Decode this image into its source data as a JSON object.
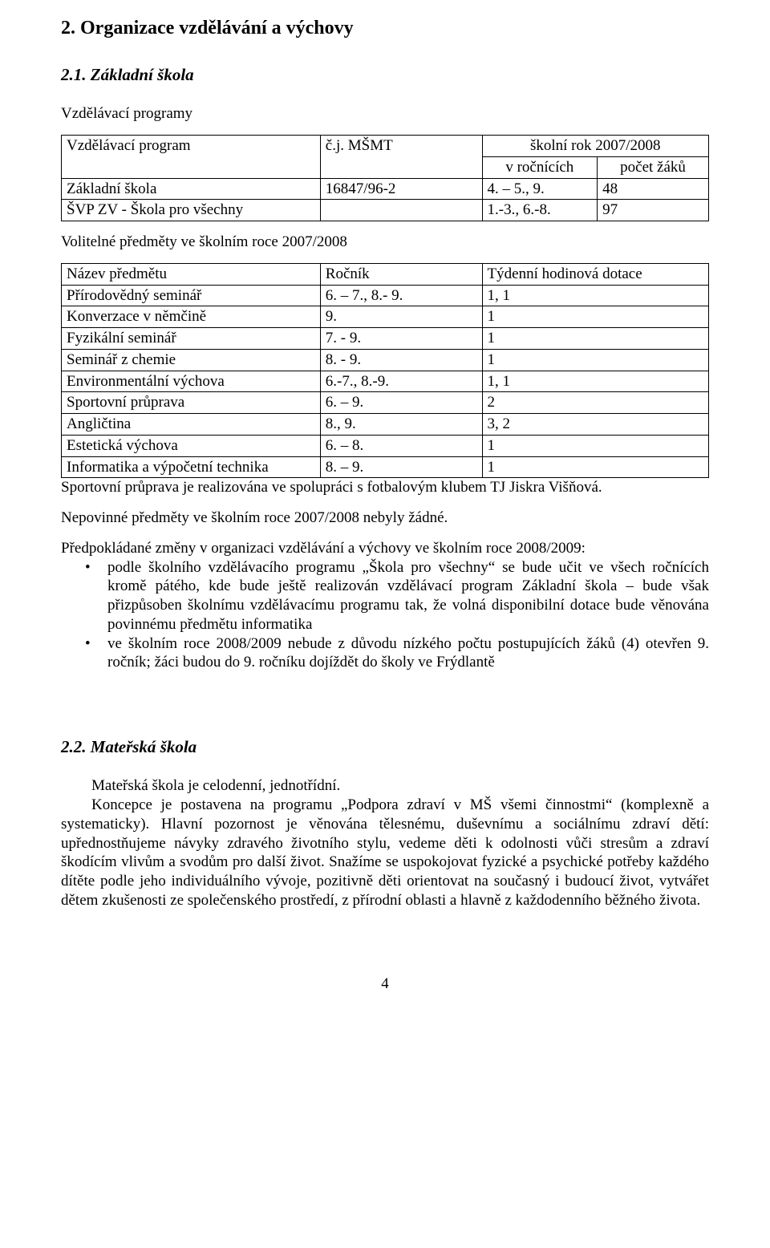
{
  "colors": {
    "text": "#000000",
    "background": "#ffffff",
    "table_border": "#000000"
  },
  "typography": {
    "body_family": "Times New Roman",
    "body_size_pt": 14,
    "h2_size_pt": 18,
    "h3_size_pt": 16
  },
  "section_title": "2. Organizace vzdělávání a výchovy",
  "sub1_title": "2.1. Základní škola",
  "vzdel_prog_label": "Vzdělávací programy",
  "table1": {
    "col_widths": [
      "40%",
      "25%",
      "35%"
    ],
    "header_row1": {
      "a": "Vzdělávací program",
      "b": "č.j. MŠMT",
      "c_span": "školní rok 2007/2008"
    },
    "header_row2": {
      "c1": "v ročnících",
      "c2": "počet žáků"
    },
    "rows": [
      {
        "a": "Základní škola",
        "b": "16847/96-2",
        "c1": "4. – 5., 9.",
        "c2": "48"
      },
      {
        "a": "ŠVP ZV - Škola pro všechny",
        "b": "",
        "c1": "1.-3., 6.-8.",
        "c2": "97"
      }
    ]
  },
  "volitelne_label": "Volitelné předměty ve školním roce 2007/2008",
  "table2": {
    "col_widths": [
      "40%",
      "25%",
      "35%"
    ],
    "headers": {
      "a": "Název předmětu",
      "b": "Ročník",
      "c": "Týdenní hodinová dotace"
    },
    "rows": [
      {
        "a": "Přírodovědný seminář",
        "b": "6. – 7., 8.- 9.",
        "c": "1, 1"
      },
      {
        "a": "Konverzace v němčině",
        "b": "9.",
        "c": "1"
      },
      {
        "a": "Fyzikální seminář",
        "b": "7. - 9.",
        "c": "1"
      },
      {
        "a": "Seminář z chemie",
        "b": "8. - 9.",
        "c": "1"
      },
      {
        "a": "Environmentální výchova",
        "b": "6.-7., 8.-9.",
        "c": "1, 1"
      },
      {
        "a": "Sportovní průprava",
        "b": "6. – 9.",
        "c": "2"
      },
      {
        "a": "Angličtina",
        "b": "8., 9.",
        "c": "3, 2"
      },
      {
        "a": "Estetická výchova",
        "b": "6. – 8.",
        "c": "1"
      },
      {
        "a": "Informatika a výpočetní technika",
        "b": "8. – 9.",
        "c": "1"
      }
    ]
  },
  "sport_note": "Sportovní průprava je realizována ve spolupráci s fotbalovým klubem TJ Jiskra Višňová.",
  "nepovinne_note": "Nepovinné předměty ve školním roce 2007/2008 nebyly žádné.",
  "predpokladane_intro": "Předpokládané změny v organizaci vzdělávání a výchovy ve školním roce 2008/2009:",
  "bullets": [
    "podle školního vzdělávacího programu „Škola pro všechny“ se bude učit ve všech ročnících kromě pátého, kde bude ještě realizován vzdělávací program Základní škola – bude však přizpůsoben školnímu vzdělávacímu programu tak, že volná disponibilní dotace bude věnována povinnému předmětu informatika",
    "ve školním roce 2008/2009 nebude z důvodu nízkého počtu postupujících žáků (4) otevřen 9. ročník; žáci budou do 9. ročníku dojíždět do školy ve Frýdlantě"
  ],
  "sub2_title": "2.2. Mateřská škola",
  "ms_para1": "Mateřská škola je celodenní, jednotřídní.",
  "ms_para2": "Koncepce je postavena na programu „Podpora zdraví v MŠ všemi činnostmi“ (komplexně a systematicky). Hlavní pozornost je věnována tělesnému, duševnímu a sociálnímu zdraví dětí: upřednostňujeme návyky zdravého životního stylu, vedeme děti k odolnosti vůči stresům a zdraví škodícím vlivům a svodům pro další život. Snažíme se uspokojovat fyzické a psychické potřeby každého dítěte podle jeho individuálního vývoje, pozitivně děti orientovat na současný i budoucí život, vytvářet dětem zkušenosti ze společenského prostředí, z přírodní oblasti a hlavně z  každodenního běžného života.",
  "page_number": "4"
}
